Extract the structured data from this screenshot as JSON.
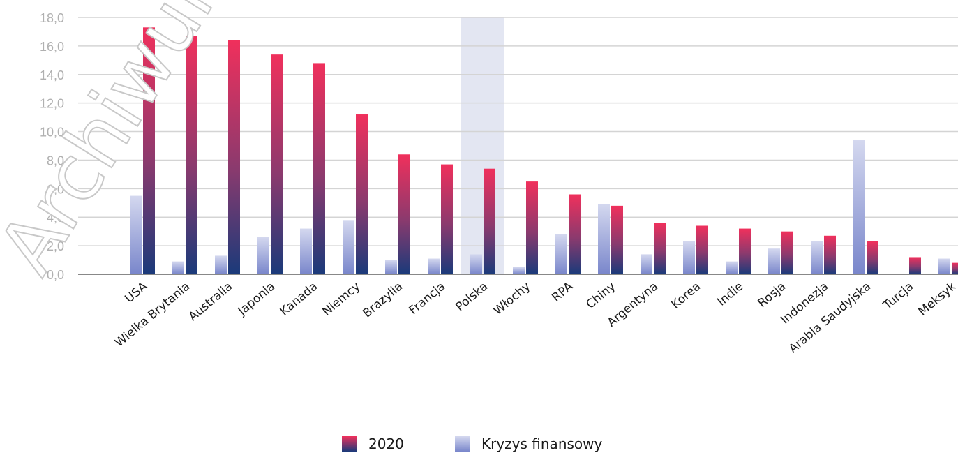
{
  "chart_data": {
    "type": "bar",
    "categories": [
      "USA",
      "Wielka Brytania",
      "Australia",
      "Japonia",
      "Kanada",
      "Niemcy",
      "Brazylia",
      "Francja",
      "Polska",
      "Włochy",
      "RPA",
      "Chiny",
      "Argentyna",
      "Korea",
      "Indie",
      "Rosja",
      "Indonezja",
      "Arabia Saudyjska",
      "Turcja",
      "Meksyk"
    ],
    "series": [
      {
        "name": "Kryzys finansowy",
        "values": [
          5.5,
          0.9,
          1.3,
          2.6,
          3.2,
          3.8,
          1.0,
          1.1,
          1.4,
          0.5,
          2.8,
          4.9,
          1.4,
          2.3,
          0.9,
          1.8,
          2.3,
          9.4,
          0.0,
          1.1
        ],
        "color_top": "#c5cae9",
        "color_bottom": "#7986cb"
      },
      {
        "name": "2020",
        "values": [
          17.3,
          16.7,
          16.4,
          15.4,
          14.8,
          11.2,
          8.4,
          7.7,
          7.4,
          6.5,
          5.6,
          4.8,
          3.6,
          3.4,
          3.2,
          3.0,
          2.7,
          2.3,
          1.2,
          0.8
        ],
        "color_top": "#f0305c",
        "color_bottom": "#1a3a7a"
      }
    ],
    "yticks": [
      "0,0",
      "2,0",
      "4,0",
      "6,0",
      "8,0",
      "10,0",
      "12,0",
      "14,0",
      "16,0",
      "18,0"
    ],
    "ylim": [
      0,
      18
    ],
    "highlight_category": "Polska",
    "highlight_color": "#e3e6f2",
    "grid": true,
    "legend_position": "bottom"
  },
  "watermark": "Archiwum P"
}
